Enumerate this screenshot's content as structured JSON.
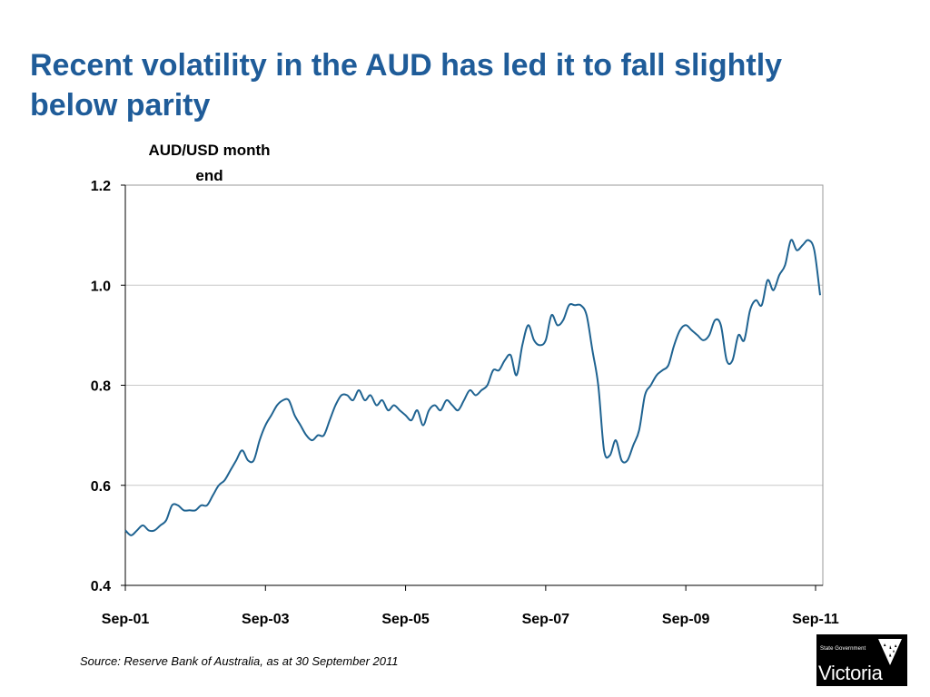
{
  "slide": {
    "title": "Recent volatility in the AUD has led it to fall slightly below parity",
    "source": "Source: Reserve Bank of Australia, as at 30 September 2011",
    "logo_small_text": "State Government",
    "logo_big_text": "Victoria"
  },
  "chart_data": {
    "type": "line",
    "title": "",
    "ylabel": "AUD/USD month end",
    "xlabel": "",
    "ylim": [
      0.4,
      1.2
    ],
    "yticks": [
      "0.4",
      "0.6",
      "0.8",
      "1.0",
      "1.2"
    ],
    "xticks": [
      "Sep-01",
      "Sep-03",
      "Sep-05",
      "Sep-07",
      "Sep-09",
      "Sep-11"
    ],
    "grid": true,
    "color": "#1f6391",
    "series": [
      {
        "name": "",
        "x_start": "Sep-01",
        "frequency": "monthly",
        "values": [
          0.51,
          0.5,
          0.51,
          0.52,
          0.51,
          0.51,
          0.52,
          0.53,
          0.56,
          0.56,
          0.55,
          0.55,
          0.55,
          0.56,
          0.56,
          0.58,
          0.6,
          0.61,
          0.63,
          0.65,
          0.67,
          0.65,
          0.65,
          0.69,
          0.72,
          0.74,
          0.76,
          0.77,
          0.77,
          0.74,
          0.72,
          0.7,
          0.69,
          0.7,
          0.7,
          0.73,
          0.76,
          0.78,
          0.78,
          0.77,
          0.79,
          0.77,
          0.78,
          0.76,
          0.77,
          0.75,
          0.76,
          0.75,
          0.74,
          0.73,
          0.75,
          0.72,
          0.75,
          0.76,
          0.75,
          0.77,
          0.76,
          0.75,
          0.77,
          0.79,
          0.78,
          0.79,
          0.8,
          0.83,
          0.83,
          0.85,
          0.86,
          0.82,
          0.88,
          0.92,
          0.89,
          0.88,
          0.89,
          0.94,
          0.92,
          0.93,
          0.96,
          0.96,
          0.96,
          0.94,
          0.87,
          0.8,
          0.67,
          0.66,
          0.69,
          0.65,
          0.65,
          0.68,
          0.71,
          0.78,
          0.8,
          0.82,
          0.83,
          0.84,
          0.88,
          0.91,
          0.92,
          0.91,
          0.9,
          0.89,
          0.9,
          0.93,
          0.92,
          0.85,
          0.85,
          0.9,
          0.89,
          0.95,
          0.97,
          0.96,
          1.01,
          0.99,
          1.02,
          1.04,
          1.09,
          1.07,
          1.08,
          1.09,
          1.07,
          0.98
        ]
      }
    ]
  }
}
